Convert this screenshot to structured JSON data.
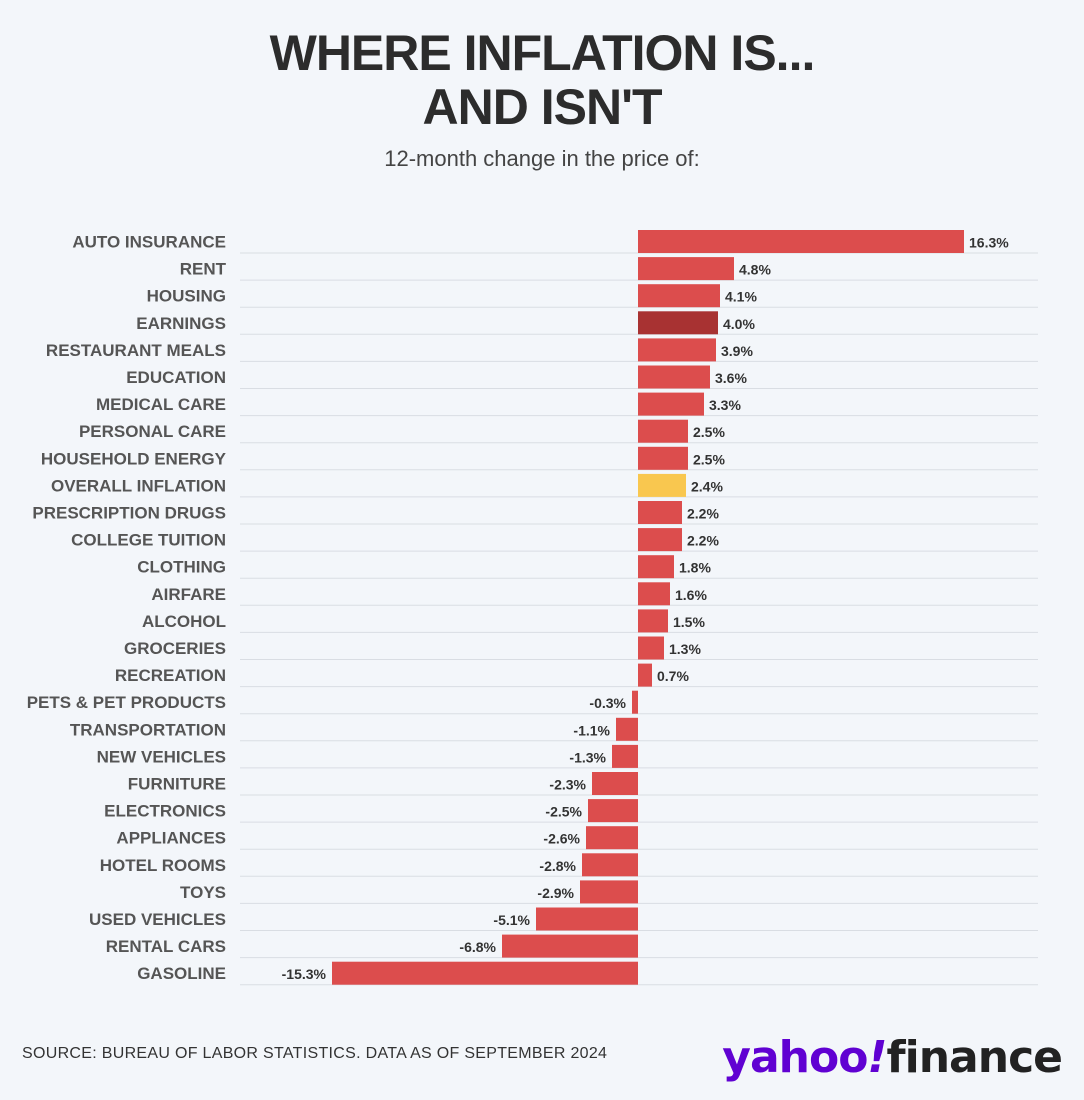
{
  "title_line1": "WHERE INFLATION IS...",
  "title_line2": "AND ISN'T",
  "subtitle": "12-month change in the price of:",
  "source": "SOURCE: BUREAU OF LABOR STATISTICS. DATA AS OF SEPTEMBER 2024",
  "logo": {
    "yahoo": "yahoo",
    "bang": "!",
    "finance": "finance"
  },
  "colors": {
    "bar": "#dc4d4d",
    "earnings": "#a83232",
    "overall": "#f9c74f",
    "grid": "#d9dde3",
    "label": "#555555",
    "value_text": "#333333"
  },
  "chart_data": {
    "type": "bar",
    "orientation": "horizontal",
    "categories": [
      "AUTO INSURANCE",
      "RENT",
      "HOUSING",
      "EARNINGS",
      "RESTAURANT MEALS",
      "EDUCATION",
      "MEDICAL CARE",
      "PERSONAL CARE",
      "HOUSEHOLD ENERGY",
      "OVERALL INFLATION",
      "PRESCRIPTION DRUGS",
      "COLLEGE TUITION",
      "CLOTHING",
      "AIRFARE",
      "ALCOHOL",
      "GROCERIES",
      "RECREATION",
      "PETS & PET PRODUCTS",
      "TRANSPORTATION",
      "NEW VEHICLES",
      "FURNITURE",
      "ELECTRONICS",
      "APPLIANCES",
      "HOTEL ROOMS",
      "TOYS",
      "USED VEHICLES",
      "RENTAL CARS",
      "GASOLINE"
    ],
    "values": [
      16.3,
      4.8,
      4.1,
      4.0,
      3.9,
      3.6,
      3.3,
      2.5,
      2.5,
      2.4,
      2.2,
      2.2,
      1.8,
      1.6,
      1.5,
      1.3,
      0.7,
      -0.3,
      -1.1,
      -1.3,
      -2.3,
      -2.5,
      -2.6,
      -2.8,
      -2.9,
      -5.1,
      -6.8,
      -15.3
    ],
    "value_labels": [
      "16.3%",
      "4.8%",
      "4.1%",
      "4.0%",
      "3.9%",
      "3.6%",
      "3.3%",
      "2.5%",
      "2.5%",
      "2.4%",
      "2.2%",
      "2.2%",
      "1.8%",
      "1.6%",
      "1.5%",
      "1.3%",
      "0.7%",
      "-0.3%",
      "-1.1%",
      "-1.3%",
      "-2.3%",
      "-2.5%",
      "-2.6%",
      "-2.8%",
      "-2.9%",
      "-5.1%",
      "-6.8%",
      "-15.3%"
    ],
    "highlight": {
      "EARNINGS": "earnings",
      "OVERALL INFLATION": "overall"
    },
    "xlim": [
      -15.3,
      16.3
    ],
    "unit": "%",
    "grid": true,
    "legend": "none"
  }
}
